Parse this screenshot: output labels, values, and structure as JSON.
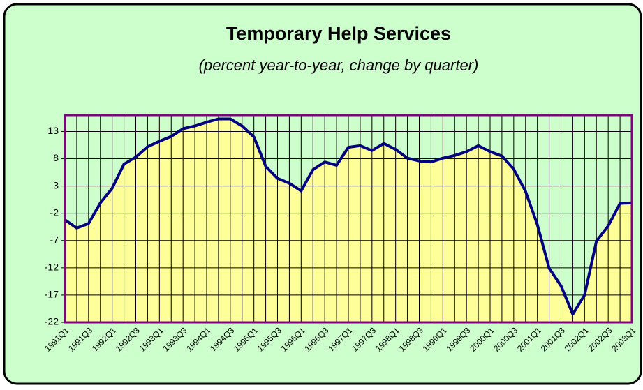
{
  "chart_data": {
    "type": "area",
    "title": "Temporary Help Services",
    "subtitle": "(percent year-to-year, change by quarter)",
    "categories": [
      "1991Q1",
      null,
      "1991Q3",
      null,
      "1992Q1",
      null,
      "1992Q3",
      null,
      "1993Q1",
      null,
      "1993Q3",
      null,
      "1994Q1",
      null,
      "1994Q3",
      null,
      "1995Q1",
      null,
      "1995Q3",
      null,
      "1996Q1",
      null,
      "1996Q3",
      null,
      "1997Q1",
      null,
      "1997Q3",
      null,
      "1998Q1",
      null,
      "1998Q3",
      null,
      "1999Q1",
      null,
      "1999Q3",
      null,
      "2000Q1",
      null,
      "2000Q3",
      null,
      "2001Q1",
      null,
      "2001Q3",
      null,
      "2002Q1",
      null,
      "2002Q3",
      null,
      "2003Q1"
    ],
    "values": [
      -3.2,
      -4.7,
      -3.9,
      -0.1,
      2.6,
      7.0,
      8.3,
      10.2,
      11.2,
      12.1,
      13.5,
      14.0,
      14.7,
      15.3,
      15.3,
      14.0,
      12.0,
      6.6,
      4.4,
      3.5,
      2.1,
      6.0,
      7.4,
      6.8,
      10.1,
      10.4,
      9.5,
      10.8,
      9.7,
      8.1,
      7.6,
      7.4,
      8.1,
      8.6,
      9.3,
      10.4,
      9.3,
      8.5,
      6.1,
      2.0,
      -4.1,
      -12.1,
      -15.3,
      -20.5,
      -17.0,
      -7.1,
      -4.3,
      -0.2,
      -0.1
    ],
    "line_color": "#000080",
    "fill_color": "#ffff99",
    "plot_background": "#ccffcc",
    "border_color": "#800080",
    "ylim": [
      -22,
      16
    ],
    "yticks": [
      -22,
      -17,
      -12,
      -7,
      -2,
      3,
      8,
      13
    ],
    "grid": true
  }
}
